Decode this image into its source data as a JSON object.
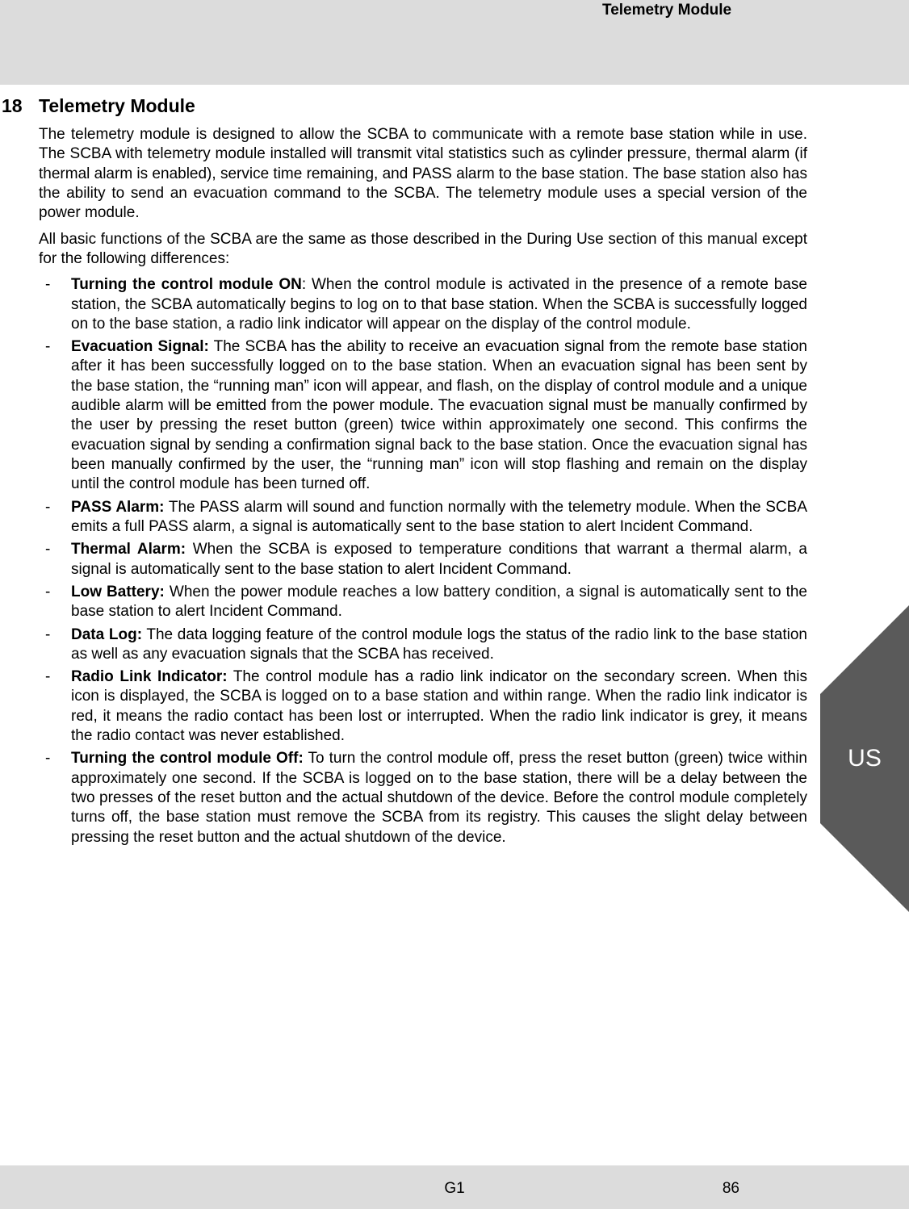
{
  "colors": {
    "band_bg": "#dcdcdc",
    "page_bg": "#ffffff",
    "text": "#000000",
    "tab_bg": "#5a5a5a",
    "tab_text": "#ffffff"
  },
  "header": {
    "running_title": "Telemetry Module"
  },
  "section": {
    "number": "18",
    "title": "Telemetry Module",
    "intro1": "The telemetry module is designed to allow the SCBA to communicate with a remote base station while in use. The SCBA with telemetry module installed will transmit vital statistics such as cylinder pressure, thermal alarm (if thermal alarm is enabled), service time remaining, and PASS alarm to the base station. The base station also has the ability to send an evacuation command to the SCBA. The telemetry module uses a special version of the power module.",
    "intro2": "All basic functions of the SCBA are the same as those described in the During Use section of this manual except for the following differences:",
    "items": [
      {
        "label": "Turning the control module ON",
        "sep": ": ",
        "text": "When the control module is activated in the presence of a remote base station, the SCBA automatically begins to log on to that base station. When the SCBA is successfully logged on to the base station, a radio link indicator will appear on the display of the control module."
      },
      {
        "label": "Evacuation Signal:",
        "sep": " ",
        "text": "The SCBA has the ability to receive an evacuation signal from the remote base station after it has been successfully logged on to the base station. When an evacuation signal has been sent by the base station, the “running man” icon will appear, and flash, on the display of control module and a unique audible alarm will be emitted from the power module. The evacuation signal must be manually confirmed by the user by pressing the reset button (green) twice within approximately one second. This confirms the evacuation signal by sending a confirmation signal back to the base station. Once the evacuation signal has been manually confirmed by the user, the “running man” icon will stop flashing and remain on the display until the control module has been turned off."
      },
      {
        "label": "PASS Alarm:",
        "sep": " ",
        "text": "The PASS alarm will sound and function normally with the telemetry module. When the SCBA emits a full PASS alarm, a signal is automatically sent to the base station to alert Incident Command."
      },
      {
        "label": "Thermal Alarm:",
        "sep": " ",
        "text": "When the SCBA is exposed to temperature conditions that warrant a thermal alarm, a signal is automatically sent to the base station to alert Incident Command."
      },
      {
        "label": "Low Battery:",
        "sep": " ",
        "text": "When the power module reaches a low battery condition, a signal is automatically sent to the base station to alert Incident Command."
      },
      {
        "label": "Data Log:",
        "sep": " ",
        "text": "The data logging feature of the control module logs the status of the radio link to the base station as well as any evacuation signals that the SCBA has received."
      },
      {
        "label": "Radio Link Indicator:",
        "sep": " ",
        "text": "The control module has a radio link indicator on the secondary screen. When this icon is displayed, the SCBA is logged on to a base station and within range. When the radio link indicator is red, it means the radio contact has been lost or interrupted. When the radio link indicator is grey, it means the radio contact was never established."
      },
      {
        "label": "Turning the control module Off:",
        "sep": " ",
        "text": "To turn the control module off, press the reset button (green) twice within approximately one second. If the SCBA is logged on to the base station, there will be a delay between the two presses of the reset button and the actual shutdown of the device. Before the control module completely turns off, the base station must remove the SCBA from its registry. This causes the slight delay between pressing the reset button and the actual shutdown of the device."
      }
    ]
  },
  "side_tab": {
    "label": "US"
  },
  "footer": {
    "center": "G1",
    "page": "86"
  }
}
